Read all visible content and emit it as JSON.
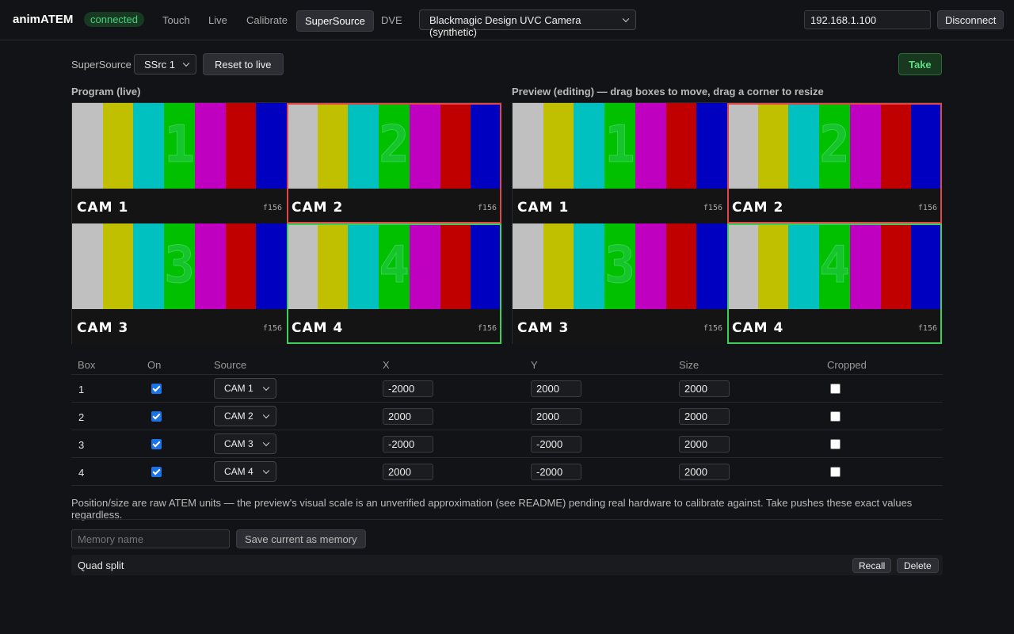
{
  "header": {
    "brand": "animATEM",
    "status": "connected",
    "tabs": [
      "Touch",
      "Live",
      "Calibrate",
      "SuperSource",
      "DVE"
    ],
    "camera": "Blackmagic Design UVC Camera (synthetic)",
    "ip": "192.168.1.100",
    "disconnect": "Disconnect"
  },
  "controls": {
    "label": "SuperSource",
    "ssrc": "SSrc 1",
    "reset": "Reset to live",
    "take": "Take"
  },
  "program": {
    "title": "Program (live)"
  },
  "preview": {
    "title": "Preview (editing) — drag boxes to move, drag a corner to resize"
  },
  "tiles": [
    {
      "number": "1",
      "label": "CAM 1",
      "frame": "f156"
    },
    {
      "number": "2",
      "label": "CAM 2",
      "frame": "f156"
    },
    {
      "number": "3",
      "label": "CAM 3",
      "frame": "f156"
    },
    {
      "number": "4",
      "label": "CAM 4",
      "frame": "f156"
    }
  ],
  "table": {
    "headers": [
      "Box",
      "On",
      "Source",
      "X",
      "Y",
      "Size",
      "Cropped"
    ],
    "rows": [
      {
        "box": "1",
        "on": true,
        "source": "CAM 1",
        "x": -2000,
        "y": 2000,
        "size": 2000,
        "cropped": false
      },
      {
        "box": "2",
        "on": true,
        "source": "CAM 2",
        "x": 2000,
        "y": 2000,
        "size": 2000,
        "cropped": false
      },
      {
        "box": "3",
        "on": true,
        "source": "CAM 3",
        "x": -2000,
        "y": -2000,
        "size": 2000,
        "cropped": false
      },
      {
        "box": "4",
        "on": true,
        "source": "CAM 4",
        "x": 2000,
        "y": -2000,
        "size": 2000,
        "cropped": false
      }
    ]
  },
  "note": "Position/size are raw ATEM units — the preview's visual scale is an unverified approximation (see README) pending real hardware to calibrate against. Take pushes these exact values regardless.",
  "memory": {
    "placeholder": "Memory name",
    "save": "Save current as memory",
    "items": [
      {
        "name": "Quad split"
      }
    ],
    "recall": "Recall",
    "delete": "Delete"
  }
}
